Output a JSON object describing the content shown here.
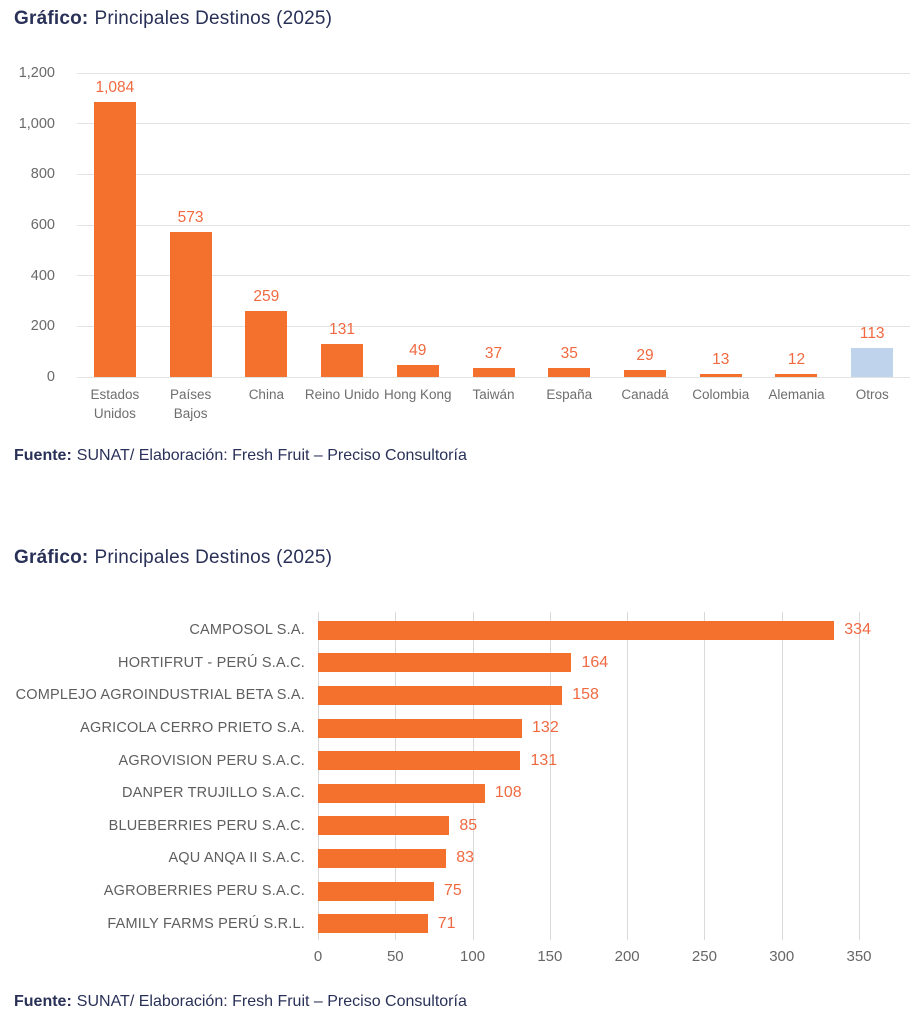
{
  "colors": {
    "navy": "#2A3158",
    "bar_orange": "#F4712D",
    "bar_blue": "#BFD3EC",
    "value_orange": "#F06940",
    "gridline": "#E3E3E3",
    "axis_text": "#696969"
  },
  "chart_data": [
    {
      "type": "bar",
      "title_prefix": "Gráfico:",
      "title": "Principales Destinos (2025)",
      "categories": [
        "Estados Unidos",
        "Países Bajos",
        "China",
        "Reino Unido",
        "Hong Kong",
        "Taiwán",
        "España",
        "Canadá",
        "Colombia",
        "Alemania",
        "Otros"
      ],
      "values": [
        1084,
        573,
        259,
        131,
        49,
        37,
        35,
        29,
        13,
        12,
        113
      ],
      "value_labels": [
        "1,084",
        "573",
        "259",
        "131",
        "49",
        "37",
        "35",
        "29",
        "13",
        "12",
        "113"
      ],
      "highlight_index": 10,
      "ylim": [
        0,
        1200
      ],
      "yticks": [
        {
          "value": 1200,
          "label": "1,200"
        },
        {
          "value": 1000,
          "label": "1,000"
        },
        {
          "value": 800,
          "label": "800"
        },
        {
          "value": 600,
          "label": "600"
        },
        {
          "value": 400,
          "label": "400"
        },
        {
          "value": 200,
          "label": "200"
        },
        {
          "value": 0,
          "label": "0"
        }
      ],
      "grid": "horizontal",
      "legend": "none",
      "source_prefix": "Fuente:",
      "source": "SUNAT/ Elaboración: Fresh Fruit – Preciso Consultoría"
    },
    {
      "type": "bar",
      "orientation": "horizontal",
      "title_prefix": "Gráfico:",
      "title": "Principales Destinos (2025)",
      "categories": [
        "CAMPOSOL S.A.",
        "HORTIFRUT - PERÚ S.A.C.",
        "COMPLEJO AGROINDUSTRIAL BETA S.A.",
        "AGRICOLA CERRO PRIETO S.A.",
        "AGROVISION PERU S.A.C.",
        "DANPER TRUJILLO S.A.C.",
        "BLUEBERRIES PERU S.A.C.",
        "AQU ANQA II S.A.C.",
        "AGROBERRIES PERU S.A.C.",
        "FAMILY FARMS PERÚ S.R.L."
      ],
      "values": [
        334,
        164,
        158,
        132,
        131,
        108,
        85,
        83,
        75,
        71
      ],
      "value_labels": [
        "334",
        "164",
        "158",
        "132",
        "131",
        "108",
        "85",
        "83",
        "75",
        "71"
      ],
      "xlim": [
        0,
        350
      ],
      "xticks": [
        0,
        50,
        100,
        150,
        200,
        250,
        300,
        350
      ],
      "grid": "vertical",
      "legend": "none",
      "source_prefix": "Fuente:",
      "source": "SUNAT/ Elaboración: Fresh Fruit – Preciso Consultoría"
    }
  ]
}
